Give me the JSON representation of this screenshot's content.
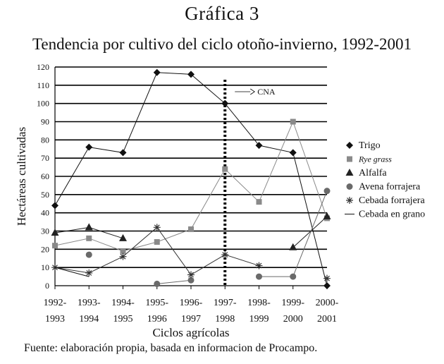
{
  "figure_label": "Gráfica 3",
  "source_note": "Fuente: elaboración propia, basada en informacion de Procampo.",
  "chart_data": {
    "type": "line",
    "title": "Tendencia por cultivo del ciclo otoño-invierno, 1992-2001",
    "xlabel": "Ciclos agrícolas",
    "ylabel": "Hectáreas cultivadas",
    "ylim": [
      0,
      120
    ],
    "yticks": [
      0,
      10,
      20,
      30,
      40,
      50,
      60,
      70,
      80,
      90,
      100,
      110,
      120
    ],
    "grid": true,
    "legend_position": "right",
    "categories": [
      [
        "1992-",
        "1993"
      ],
      [
        "1993-",
        "1994"
      ],
      [
        "1994-",
        "1995"
      ],
      [
        "1995-",
        "1996"
      ],
      [
        "1996-",
        "1997"
      ],
      [
        "1997-",
        "1998"
      ],
      [
        "1998-",
        "1999"
      ],
      [
        "1999-",
        "2000"
      ],
      [
        "2000-",
        "2001"
      ]
    ],
    "series": [
      {
        "name": "Trigo",
        "marker": "diamond",
        "color": "#111111",
        "dash": "",
        "values": [
          44,
          76,
          73,
          117,
          116,
          100,
          77,
          73,
          0
        ]
      },
      {
        "name": "Rye grass",
        "italic": true,
        "marker": "square",
        "color": "#8a8a8a",
        "dash": "",
        "values": [
          22,
          26,
          19,
          24,
          31,
          64,
          46,
          90,
          37
        ]
      },
      {
        "name": "Alfalfa",
        "marker": "triangle",
        "color": "#222222",
        "dash": "",
        "values": [
          29,
          32,
          26,
          null,
          null,
          null,
          null,
          21,
          38
        ]
      },
      {
        "name": "Avena forrajera",
        "marker": "circle",
        "color": "#6a6a6a",
        "dash": "",
        "values": [
          null,
          17,
          null,
          1,
          3,
          null,
          5,
          5,
          52
        ]
      },
      {
        "name": "Cebada forrajera",
        "marker": "star",
        "color": "#333333",
        "dash": "",
        "values": [
          10,
          7,
          16,
          32,
          6,
          17,
          11,
          null,
          4
        ]
      },
      {
        "name": "Cebada en grano",
        "marker": "none",
        "color": "#111111",
        "dash": "",
        "values": [
          10,
          5,
          null,
          null,
          null,
          null,
          null,
          null,
          null
        ]
      }
    ],
    "annotation": {
      "label": "CNA",
      "at_category": 5,
      "style": "dotted-vertical-line"
    }
  }
}
